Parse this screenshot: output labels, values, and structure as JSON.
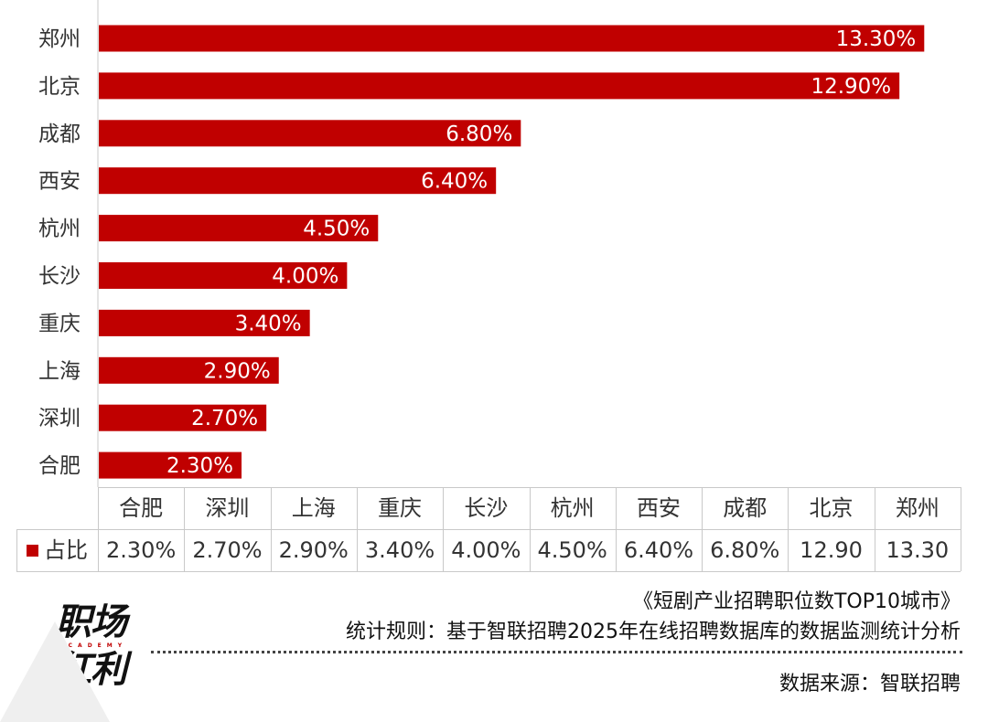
{
  "chart_data": {
    "type": "bar",
    "orientation": "horizontal",
    "categories": [
      "郑州",
      "北京",
      "成都",
      "西安",
      "杭州",
      "长沙",
      "重庆",
      "上海",
      "深圳",
      "合肥"
    ],
    "values": [
      13.3,
      12.9,
      6.8,
      6.4,
      4.5,
      4.0,
      3.4,
      2.9,
      2.7,
      2.3
    ],
    "labels": [
      "13.30%",
      "12.90%",
      "6.80%",
      "6.40%",
      "4.50%",
      "4.00%",
      "3.40%",
      "2.90%",
      "2.70%",
      "2.30%"
    ],
    "xlim": [
      0,
      14
    ],
    "bar_color": "#c00000",
    "grid": false
  },
  "table": {
    "series_name": "占比",
    "headers": [
      "合肥",
      "深圳",
      "上海",
      "重庆",
      "长沙",
      "杭州",
      "西安",
      "成都",
      "北京",
      "郑州"
    ],
    "values": [
      "2.30%",
      "2.70%",
      "2.90%",
      "3.40%",
      "4.00%",
      "4.50%",
      "6.40%",
      "6.80%",
      "12.90",
      "13.30"
    ]
  },
  "footer": {
    "title": "《短剧产业招聘职位数TOP10城市》",
    "rule": "统计规则：基于智联招聘2025年在线招聘数据库的数据监测统计分析",
    "source": "数据来源：智联招聘"
  },
  "logo": {
    "top": "职场",
    "sub": "ACADEMY",
    "bottom": "红利"
  }
}
